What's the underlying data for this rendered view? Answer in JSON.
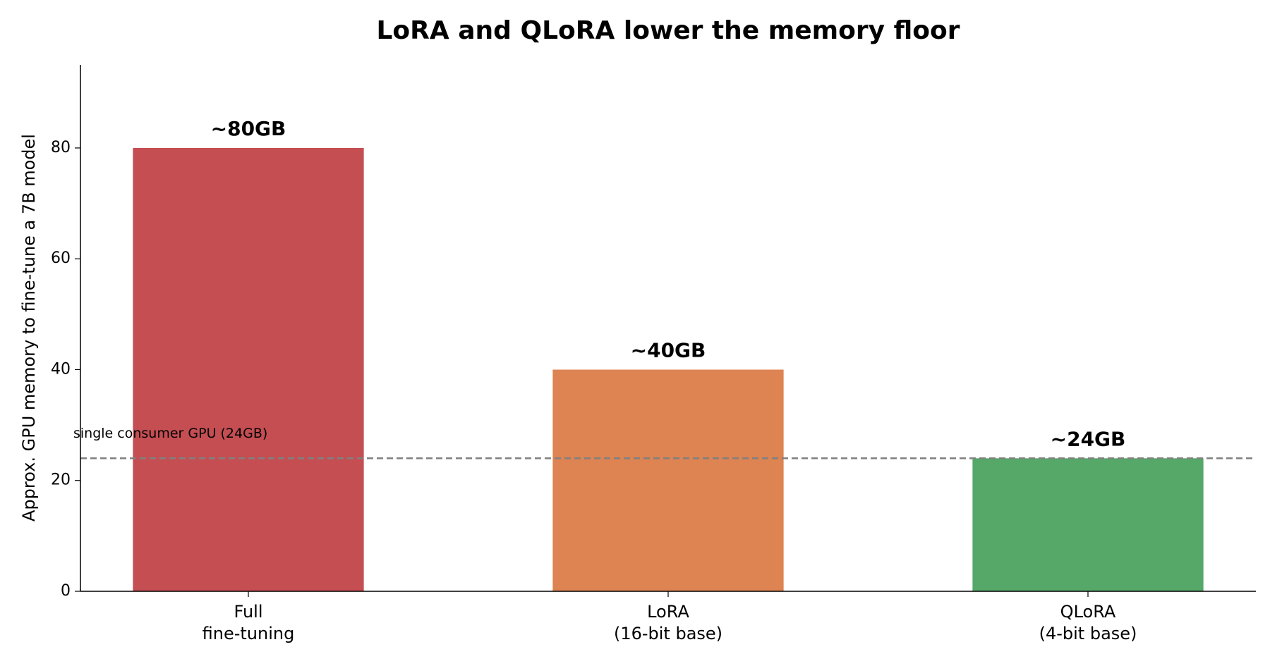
{
  "chart_data": {
    "type": "bar",
    "title": "LoRA and QLoRA lower the memory floor",
    "y_label": "Approx. GPU memory to fine-tune a 7B model",
    "categories": [
      "Full\nfine-tuning",
      "LoRA\n(16-bit base)",
      "QLoRA\n(4-bit base)"
    ],
    "values": [
      80,
      40,
      24
    ],
    "value_labels": [
      "~80GB",
      "~40GB",
      "~24GB"
    ],
    "colors": [
      "#c44e52",
      "#dd8452",
      "#55a868"
    ],
    "reference_line": {
      "value": 24,
      "label": "single consumer GPU (24GB)",
      "color": "#808080"
    },
    "ylim": [
      0,
      95
    ],
    "yticks": [
      0,
      20,
      40,
      60,
      80
    ],
    "grid": false
  }
}
